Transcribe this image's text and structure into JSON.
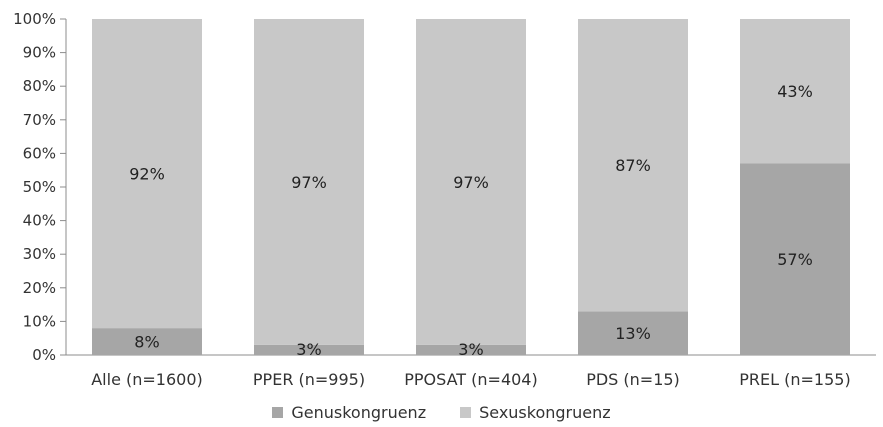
{
  "chart_data": {
    "type": "bar",
    "stacked": true,
    "percent": true,
    "categories": [
      "Alle (n=1600)",
      "PPER (n=995)",
      "PPOSAT (n=404)",
      "PDS (n=15)",
      "PREL (n=155)"
    ],
    "series": [
      {
        "name": "Genuskongruenz",
        "color": "#a6a6a6",
        "values": [
          8,
          3,
          3,
          13,
          57
        ],
        "labels": [
          "8%",
          "3%",
          "3%",
          "13%",
          "57%"
        ]
      },
      {
        "name": "Sexuskongruenz",
        "color": "#c8c8c8",
        "values": [
          92,
          97,
          97,
          87,
          43
        ],
        "labels": [
          "92%",
          "97%",
          "97%",
          "87%",
          "43%"
        ]
      }
    ],
    "yticks": [
      "0%",
      "10%",
      "20%",
      "30%",
      "40%",
      "50%",
      "60%",
      "70%",
      "80%",
      "90%",
      "100%"
    ],
    "ylim": [
      0,
      100
    ],
    "grid": false,
    "legend_position": "bottom"
  }
}
